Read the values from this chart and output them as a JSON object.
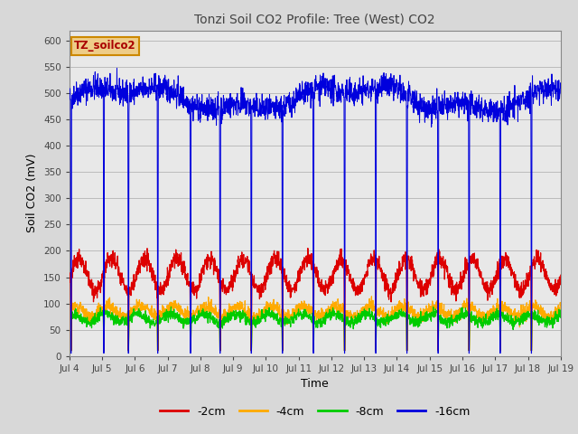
{
  "title": "Tonzi Soil CO2 Profile: Tree (West) CO2",
  "xlabel": "Time",
  "ylabel": "Soil CO2 (mV)",
  "ylim": [
    0,
    620
  ],
  "yticks": [
    0,
    50,
    100,
    150,
    200,
    250,
    300,
    350,
    400,
    450,
    500,
    550,
    600
  ],
  "xtick_labels": [
    "Jul 4",
    "Jul 5",
    "Jul 6",
    "Jul 7",
    "Jul 8",
    "Jul 9",
    "Jul 10",
    "Jul 11",
    "Jul 12",
    "Jul 13",
    "Jul 14",
    "Jul 15",
    "Jul 16",
    "Jul 17",
    "Jul 18",
    "Jul 19"
  ],
  "colors": {
    "2cm": "#dd0000",
    "4cm": "#ffaa00",
    "8cm": "#00cc00",
    "16cm": "#0000dd"
  },
  "legend_labels": [
    "-2cm",
    "-4cm",
    "-8cm",
    "-16cm"
  ],
  "legend_box_text": "TZ_soilco2",
  "background_color": "#d8d8d8",
  "plot_bg_color": "#e8e8e8",
  "grid_color": "#bbbbbb"
}
